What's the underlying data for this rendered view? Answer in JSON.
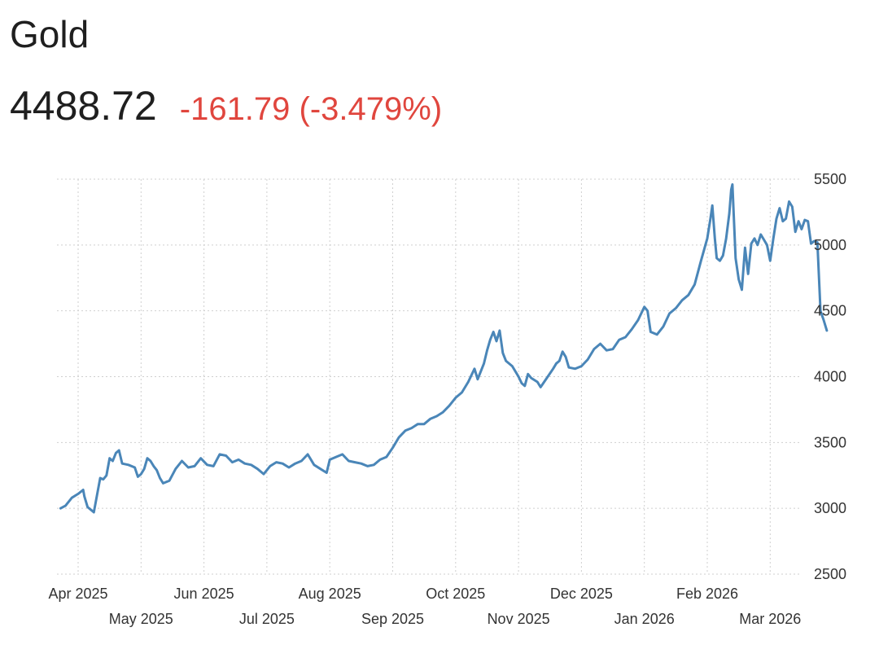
{
  "header": {
    "title": "Gold",
    "price": "4488.72",
    "change": "-161.79 (-3.479%)",
    "change_color": "#e0463e"
  },
  "colors": {
    "line": "#4a86b8",
    "grid": "#cfcfcf",
    "text": "#1f1f1f"
  },
  "chart_data": {
    "type": "line",
    "title": "Gold",
    "xlabel": "",
    "ylabel": "",
    "y_axis_position": "right",
    "grid": true,
    "ylim": [
      2500,
      5500
    ],
    "y_ticks": [
      "5500",
      "5000",
      "4500",
      "4000",
      "3500",
      "3000",
      "2500"
    ],
    "x_ticks_upper": [
      {
        "label": "Apr 2025",
        "x": 0.0
      },
      {
        "label": "Jun 2025",
        "x": 2.0
      },
      {
        "label": "Aug 2025",
        "x": 4.0
      },
      {
        "label": "Oct 2025",
        "x": 6.0
      },
      {
        "label": "Dec 2025",
        "x": 8.0
      },
      {
        "label": "Feb 2026",
        "x": 10.0
      }
    ],
    "x_ticks_lower": [
      {
        "label": "May 2025",
        "x": 1.0
      },
      {
        "label": "Jul 2025",
        "x": 3.0
      },
      {
        "label": "Sep 2025",
        "x": 5.0
      },
      {
        "label": "Nov 2025",
        "x": 7.0
      },
      {
        "label": "Jan 2026",
        "x": 9.0
      },
      {
        "label": "Mar 2026",
        "x": 11.0
      }
    ],
    "x_unit": "months since Apr 1 2025",
    "series": [
      {
        "name": "Gold",
        "points": [
          [
            -0.28,
            3000
          ],
          [
            -0.2,
            3020
          ],
          [
            -0.1,
            3080
          ],
          [
            0.0,
            3110
          ],
          [
            0.08,
            3140
          ],
          [
            0.1,
            3090
          ],
          [
            0.15,
            3010
          ],
          [
            0.2,
            2990
          ],
          [
            0.25,
            2970
          ],
          [
            0.3,
            3100
          ],
          [
            0.35,
            3230
          ],
          [
            0.4,
            3220
          ],
          [
            0.45,
            3250
          ],
          [
            0.5,
            3380
          ],
          [
            0.55,
            3360
          ],
          [
            0.6,
            3420
          ],
          [
            0.65,
            3440
          ],
          [
            0.7,
            3340
          ],
          [
            0.8,
            3330
          ],
          [
            0.9,
            3310
          ],
          [
            0.95,
            3240
          ],
          [
            1.0,
            3260
          ],
          [
            1.05,
            3300
          ],
          [
            1.1,
            3380
          ],
          [
            1.15,
            3360
          ],
          [
            1.2,
            3320
          ],
          [
            1.25,
            3290
          ],
          [
            1.3,
            3230
          ],
          [
            1.35,
            3190
          ],
          [
            1.45,
            3210
          ],
          [
            1.55,
            3300
          ],
          [
            1.65,
            3360
          ],
          [
            1.75,
            3310
          ],
          [
            1.85,
            3320
          ],
          [
            1.95,
            3380
          ],
          [
            2.05,
            3330
          ],
          [
            2.15,
            3320
          ],
          [
            2.25,
            3410
          ],
          [
            2.35,
            3400
          ],
          [
            2.45,
            3350
          ],
          [
            2.55,
            3370
          ],
          [
            2.65,
            3340
          ],
          [
            2.75,
            3330
          ],
          [
            2.85,
            3300
          ],
          [
            2.95,
            3260
          ],
          [
            3.05,
            3320
          ],
          [
            3.15,
            3350
          ],
          [
            3.25,
            3340
          ],
          [
            3.35,
            3310
          ],
          [
            3.45,
            3340
          ],
          [
            3.55,
            3360
          ],
          [
            3.65,
            3410
          ],
          [
            3.75,
            3330
          ],
          [
            3.85,
            3300
          ],
          [
            3.95,
            3270
          ],
          [
            4.0,
            3370
          ],
          [
            4.1,
            3390
          ],
          [
            4.2,
            3410
          ],
          [
            4.3,
            3360
          ],
          [
            4.4,
            3350
          ],
          [
            4.5,
            3340
          ],
          [
            4.6,
            3320
          ],
          [
            4.7,
            3330
          ],
          [
            4.8,
            3370
          ],
          [
            4.9,
            3390
          ],
          [
            5.0,
            3460
          ],
          [
            5.1,
            3540
          ],
          [
            5.2,
            3590
          ],
          [
            5.3,
            3610
          ],
          [
            5.4,
            3640
          ],
          [
            5.5,
            3640
          ],
          [
            5.6,
            3680
          ],
          [
            5.7,
            3700
          ],
          [
            5.8,
            3730
          ],
          [
            5.9,
            3780
          ],
          [
            6.0,
            3840
          ],
          [
            6.1,
            3880
          ],
          [
            6.2,
            3960
          ],
          [
            6.3,
            4060
          ],
          [
            6.35,
            3980
          ],
          [
            6.45,
            4100
          ],
          [
            6.5,
            4200
          ],
          [
            6.55,
            4280
          ],
          [
            6.6,
            4340
          ],
          [
            6.65,
            4270
          ],
          [
            6.7,
            4350
          ],
          [
            6.75,
            4180
          ],
          [
            6.8,
            4120
          ],
          [
            6.9,
            4080
          ],
          [
            7.0,
            4000
          ],
          [
            7.05,
            3950
          ],
          [
            7.1,
            3930
          ],
          [
            7.15,
            4020
          ],
          [
            7.2,
            3990
          ],
          [
            7.3,
            3960
          ],
          [
            7.35,
            3920
          ],
          [
            7.45,
            3990
          ],
          [
            7.55,
            4060
          ],
          [
            7.6,
            4100
          ],
          [
            7.65,
            4120
          ],
          [
            7.7,
            4190
          ],
          [
            7.75,
            4150
          ],
          [
            7.8,
            4070
          ],
          [
            7.9,
            4060
          ],
          [
            8.0,
            4080
          ],
          [
            8.1,
            4130
          ],
          [
            8.2,
            4210
          ],
          [
            8.3,
            4250
          ],
          [
            8.4,
            4200
          ],
          [
            8.5,
            4210
          ],
          [
            8.6,
            4280
          ],
          [
            8.7,
            4300
          ],
          [
            8.8,
            4360
          ],
          [
            8.9,
            4430
          ],
          [
            9.0,
            4530
          ],
          [
            9.05,
            4500
          ],
          [
            9.1,
            4340
          ],
          [
            9.2,
            4320
          ],
          [
            9.3,
            4380
          ],
          [
            9.4,
            4480
          ],
          [
            9.5,
            4520
          ],
          [
            9.6,
            4580
          ],
          [
            9.7,
            4620
          ],
          [
            9.8,
            4700
          ],
          [
            9.9,
            4880
          ],
          [
            10.0,
            5050
          ],
          [
            10.05,
            5200
          ],
          [
            10.08,
            5300
          ],
          [
            10.12,
            5050
          ],
          [
            10.15,
            4900
          ],
          [
            10.2,
            4880
          ],
          [
            10.25,
            4920
          ],
          [
            10.3,
            5050
          ],
          [
            10.35,
            5240
          ],
          [
            10.38,
            5420
          ],
          [
            10.4,
            5460
          ],
          [
            10.45,
            4900
          ],
          [
            10.5,
            4740
          ],
          [
            10.55,
            4660
          ],
          [
            10.6,
            4980
          ],
          [
            10.65,
            4780
          ],
          [
            10.7,
            5010
          ],
          [
            10.75,
            5050
          ],
          [
            10.8,
            5000
          ],
          [
            10.85,
            5080
          ],
          [
            10.9,
            5040
          ],
          [
            10.95,
            5000
          ],
          [
            11.0,
            4880
          ],
          [
            11.05,
            5050
          ],
          [
            11.1,
            5200
          ],
          [
            11.15,
            5280
          ],
          [
            11.2,
            5180
          ],
          [
            11.25,
            5200
          ],
          [
            11.3,
            5330
          ],
          [
            11.35,
            5290
          ],
          [
            11.4,
            5100
          ],
          [
            11.45,
            5180
          ],
          [
            11.5,
            5120
          ],
          [
            11.55,
            5190
          ],
          [
            11.6,
            5180
          ],
          [
            11.65,
            5010
          ],
          [
            11.7,
            5030
          ],
          [
            11.75,
            5020
          ],
          [
            11.8,
            4500
          ],
          [
            11.85,
            4430
          ],
          [
            11.9,
            4350
          ]
        ]
      }
    ]
  }
}
